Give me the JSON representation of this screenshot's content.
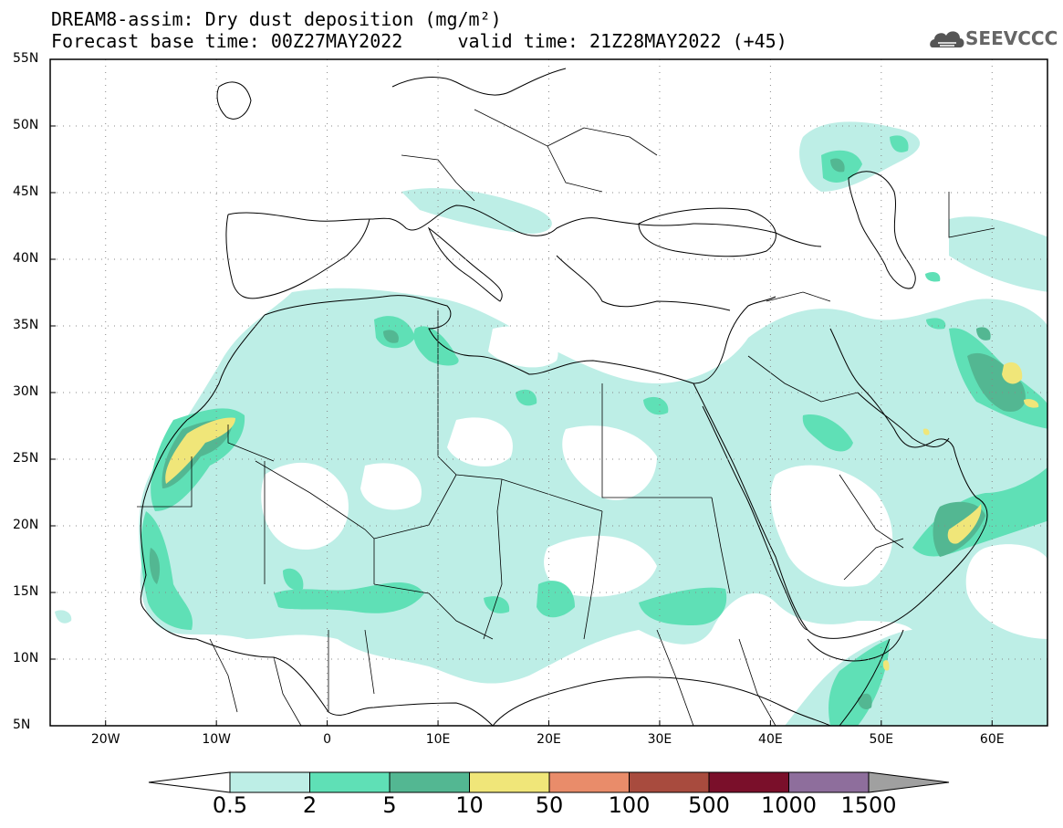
{
  "title": {
    "line1": "DREAM8-assim: Dry dust deposition (mg/m²)",
    "line2": "Forecast base time: 00Z27MAY2022     valid time: 21Z28MAY2022 (+45)"
  },
  "logo": {
    "text": "SEEVCCC",
    "icon": "cloud-icon"
  },
  "map": {
    "lon_range": [
      -25,
      65
    ],
    "lat_range": [
      5,
      55
    ],
    "lat_ticks": [
      "55N",
      "50N",
      "45N",
      "40N",
      "35N",
      "30N",
      "25N",
      "20N",
      "15N",
      "10N",
      "5N"
    ],
    "lon_ticks": [
      "20W",
      "10W",
      "0",
      "10E",
      "20E",
      "30E",
      "40E",
      "50E",
      "60E"
    ],
    "grid": "dotted",
    "colors": {
      "level1": "#bdeee6",
      "level2": "#5fe0b6",
      "level3": "#53b792",
      "level4": "#f0e679"
    }
  },
  "colorbar": {
    "labels": [
      "0.5",
      "2",
      "5",
      "10",
      "50",
      "100",
      "500",
      "1000",
      "1500"
    ],
    "colors": [
      "#bdeee6",
      "#5fe0b6",
      "#53b792",
      "#f0e679",
      "#e98c6a",
      "#a84b3e",
      "#7a0f2a",
      "#8e6e9c"
    ],
    "under_color": "#ffffff",
    "over_color": "#a0a0a0"
  }
}
